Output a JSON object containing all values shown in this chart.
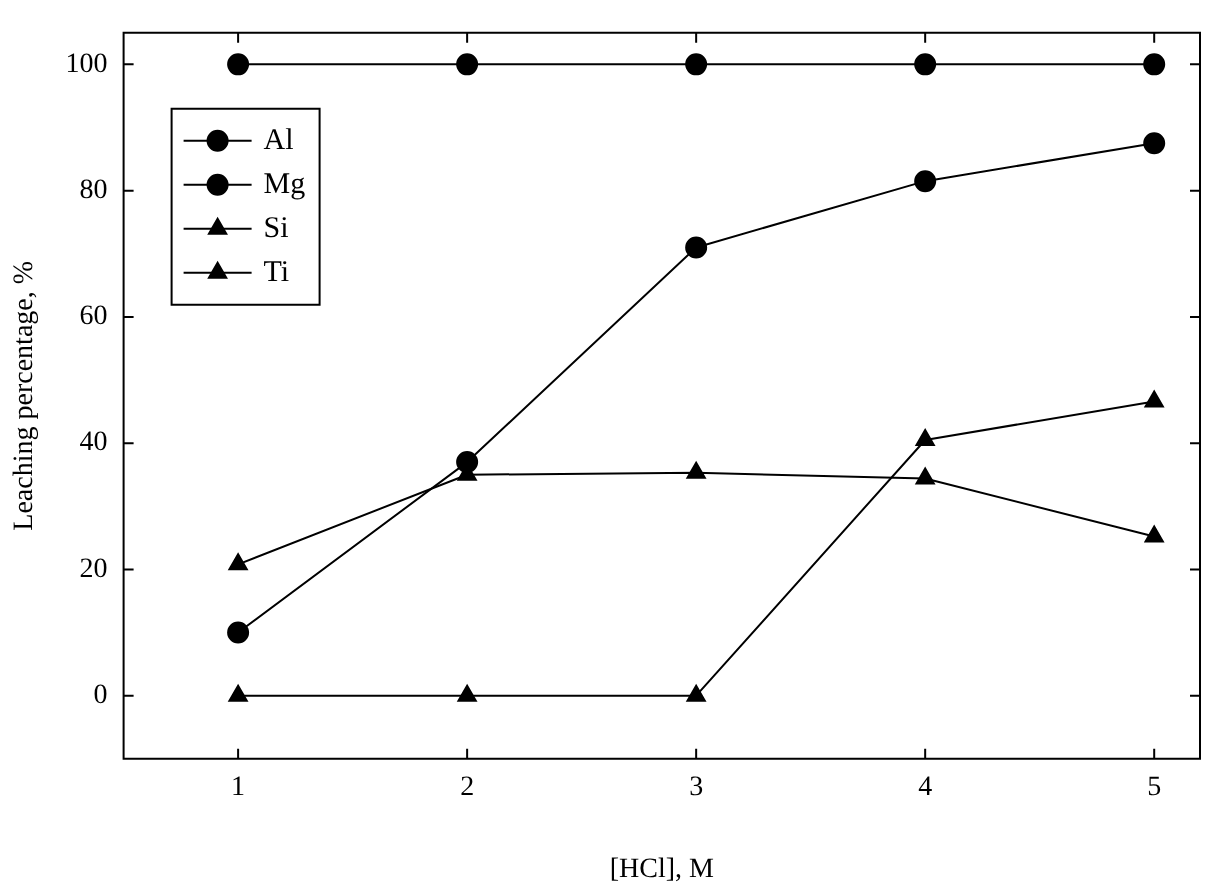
{
  "chart_data": {
    "type": "line",
    "xlabel": "[HCl], M",
    "ylabel": "Leaching percentage, %",
    "x": [
      1,
      2,
      3,
      4,
      5
    ],
    "xlim": [
      0.5,
      5.2
    ],
    "xticks": [
      1,
      2,
      3,
      4,
      5
    ],
    "ylim": [
      -10,
      105
    ],
    "yticks": [
      0,
      20,
      40,
      60,
      80,
      100
    ],
    "grid": false,
    "legend": "top left",
    "line_style": "solid",
    "series": [
      {
        "name": "Al",
        "color": "#000000",
        "marker": "circle",
        "values": [
          10,
          37,
          71,
          81.5,
          87.5
        ]
      },
      {
        "name": "Mg",
        "color": "#000000",
        "marker": "circle",
        "values": [
          100,
          100,
          100,
          100,
          100
        ]
      },
      {
        "name": "Si",
        "color": "#000000",
        "marker": "triangle",
        "values": [
          20.8,
          35,
          35.3,
          34.4,
          25.2
        ]
      },
      {
        "name": "Ti",
        "color": "#000000",
        "marker": "triangle",
        "values": [
          0,
          0,
          0,
          40.5,
          46.6
        ]
      }
    ]
  }
}
